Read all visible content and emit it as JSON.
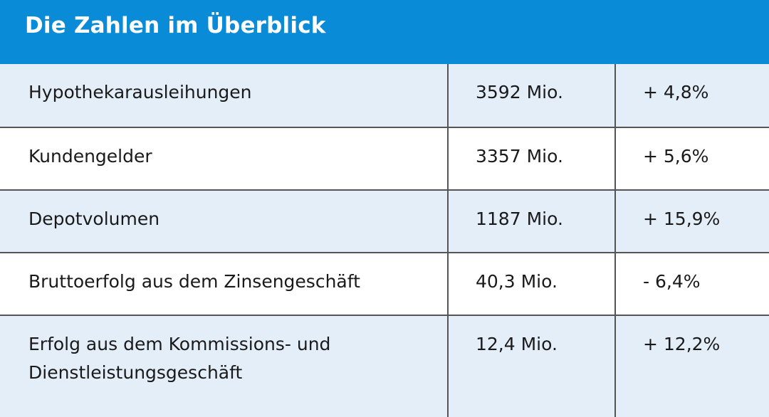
{
  "header": {
    "title": "Die Zahlen im Überblick"
  },
  "table": {
    "rows": [
      [
        "Hypothekarausleihungen",
        "3592 Mio.",
        "+ 4,8%"
      ],
      [
        "Kundengelder",
        "3357 Mio.",
        "+ 5,6%"
      ],
      [
        "Depotvolumen",
        "1187 Mio.",
        "+ 15,9%"
      ],
      [
        "Bruttoerfolg aus dem Zinsengeschäft",
        "40,3 Mio.",
        "- 6,4%"
      ],
      [
        "Erfolg aus dem Kommissions- und\nDienstleistungsgeschäft",
        "12,4 Mio.",
        "+ 12,2%"
      ]
    ]
  }
}
